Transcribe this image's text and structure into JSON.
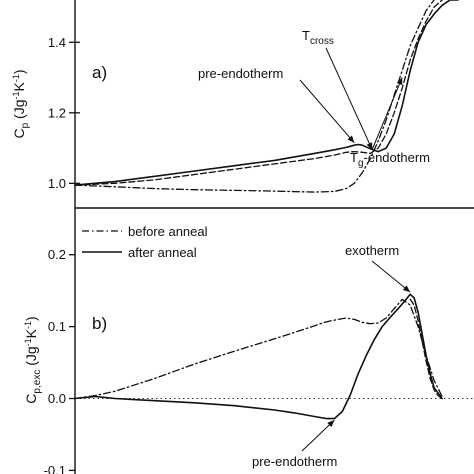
{
  "chart_data": [
    {
      "type": "line",
      "panel_label": "a)",
      "ylabel_main": "C",
      "ylabel_sub": "p",
      "ylabel_unit_pre": " (Jg",
      "ylabel_unit_exp1": "-1",
      "ylabel_unit_mid": "K",
      "ylabel_unit_exp2": "-1",
      "ylabel_unit_post": ")",
      "ylim": [
        0.93,
        1.52
      ],
      "yticks": [
        1.0,
        1.2,
        1.4
      ],
      "ytick_labels": [
        "1.0",
        "1.2",
        "1.4"
      ],
      "xlim": [
        0,
        100
      ],
      "grid": false,
      "series": [
        {
          "style": "solid",
          "x": [
            0,
            10,
            20,
            30,
            40,
            50,
            60,
            65,
            68,
            70,
            71,
            72,
            74,
            76,
            78,
            80,
            82,
            84,
            86,
            88,
            90,
            92,
            94,
            96
          ],
          "y": [
            0.995,
            1.005,
            1.02,
            1.035,
            1.05,
            1.065,
            1.085,
            1.095,
            1.102,
            1.108,
            1.11,
            1.108,
            1.098,
            1.09,
            1.1,
            1.14,
            1.22,
            1.32,
            1.4,
            1.45,
            1.48,
            1.505,
            1.52,
            1.52
          ]
        },
        {
          "style": "dashed",
          "x": [
            0,
            10,
            20,
            30,
            40,
            50,
            60,
            65,
            68,
            70,
            72,
            74,
            76,
            78,
            80,
            82,
            84,
            86,
            88,
            90,
            92
          ],
          "y": [
            0.995,
            1.0,
            1.01,
            1.025,
            1.04,
            1.055,
            1.07,
            1.08,
            1.088,
            1.09,
            1.088,
            1.085,
            1.1,
            1.14,
            1.2,
            1.27,
            1.35,
            1.41,
            1.46,
            1.5,
            1.52
          ]
        },
        {
          "style": "dashdot",
          "x": [
            0,
            10,
            20,
            30,
            40,
            50,
            60,
            65,
            68,
            70,
            72,
            74,
            76,
            78,
            80,
            82,
            84,
            86,
            88,
            90
          ],
          "y": [
            0.995,
            0.99,
            0.985,
            0.982,
            0.98,
            0.978,
            0.975,
            0.977,
            0.985,
            1.0,
            1.03,
            1.07,
            1.12,
            1.18,
            1.25,
            1.32,
            1.39,
            1.44,
            1.49,
            1.52
          ]
        }
      ],
      "annotations": [
        {
          "kind": "pre-endotherm",
          "text": "pre-endotherm",
          "arrow_to": [
            70,
            1.115
          ]
        },
        {
          "kind": "tcross",
          "text_main": "T",
          "text_sub": "cross",
          "arrow_to": [
            74.5,
            1.095
          ]
        },
        {
          "kind": "tg",
          "text_main": "T",
          "text_sub": "g",
          "text_rest": "-endotherm",
          "arrow_to": [
            82,
            1.3
          ]
        }
      ]
    },
    {
      "type": "line",
      "panel_label": "b)",
      "ylabel_main": "C",
      "ylabel_sub": "p,exc",
      "ylabel_unit_pre": " (Jg",
      "ylabel_unit_exp1": "-1",
      "ylabel_unit_mid": "K",
      "ylabel_unit_exp2": "-1",
      "ylabel_unit_post": ")",
      "ylim": [
        -0.105,
        0.265
      ],
      "yticks": [
        -0.1,
        0.0,
        0.1,
        0.2
      ],
      "ytick_labels": [
        "-0.1",
        "0.0",
        "0.1",
        "0.2"
      ],
      "xlim": [
        0,
        100
      ],
      "zero_line": true,
      "grid": false,
      "legend": {
        "placement": "top-left",
        "entries": [
          {
            "style": "dashdot",
            "label": "before anneal"
          },
          {
            "style": "solid",
            "label": "after anneal"
          }
        ]
      },
      "series": [
        {
          "style": "dashdot",
          "x": [
            0,
            5,
            10,
            20,
            30,
            40,
            50,
            55,
            60,
            62,
            64,
            66,
            68,
            70,
            72,
            74,
            76,
            78,
            80,
            82,
            84,
            86,
            88,
            90,
            92
          ],
          "y": [
            0.0,
            0.004,
            0.01,
            0.028,
            0.048,
            0.066,
            0.083,
            0.092,
            0.101,
            0.105,
            0.108,
            0.11,
            0.112,
            0.11,
            0.106,
            0.104,
            0.105,
            0.112,
            0.125,
            0.138,
            0.13,
            0.1,
            0.06,
            0.025,
            0.003
          ]
        },
        {
          "style": "solid",
          "x": [
            0,
            5,
            10,
            20,
            30,
            40,
            50,
            55,
            60,
            63,
            65,
            67,
            69,
            71,
            73,
            75,
            77,
            79,
            81,
            83,
            84,
            85,
            86,
            87,
            88,
            89,
            90,
            92
          ],
          "y": [
            0.0,
            0.003,
            0.0,
            -0.003,
            -0.006,
            -0.01,
            -0.016,
            -0.02,
            -0.025,
            -0.028,
            -0.028,
            -0.018,
            0.005,
            0.035,
            0.06,
            0.082,
            0.1,
            0.113,
            0.125,
            0.138,
            0.145,
            0.14,
            0.12,
            0.09,
            0.06,
            0.035,
            0.015,
            0.0
          ]
        },
        {
          "style": "dashed",
          "x": [
            84,
            85,
            86,
            87,
            88,
            89,
            90,
            91,
            92
          ],
          "y": [
            0.138,
            0.13,
            0.108,
            0.08,
            0.052,
            0.028,
            0.012,
            0.004,
            0.0
          ]
        }
      ],
      "annotations": [
        {
          "kind": "exotherm",
          "text": "exotherm",
          "arrow_to": [
            84,
            0.148
          ]
        },
        {
          "kind": "pre-endotherm-b",
          "text": "pre-endotherm",
          "arrow_to": [
            65,
            -0.03
          ]
        }
      ]
    }
  ]
}
